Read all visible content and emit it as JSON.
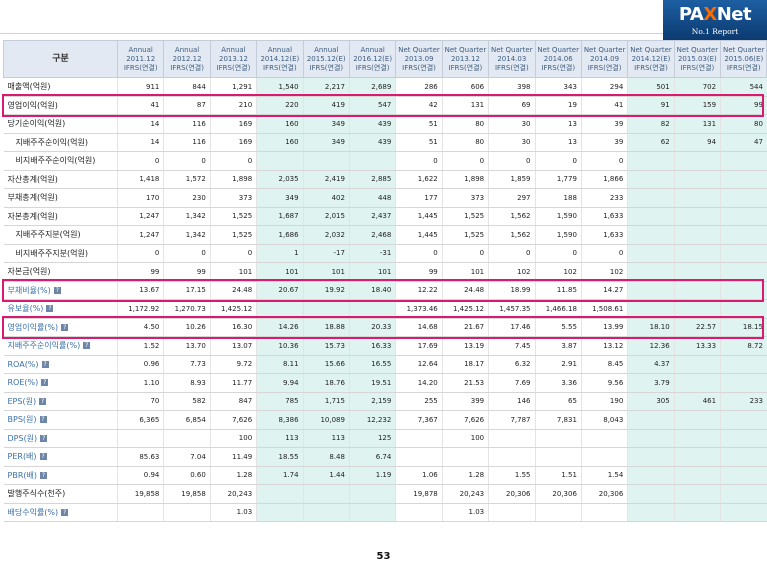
{
  "logo": {
    "pre": "PA",
    "x": "X",
    "post": "Net",
    "sub": "No.1 Report"
  },
  "header": {
    "label": "구분"
  },
  "columns": [
    {
      "l1": "Annual",
      "l2": "2011.12",
      "l3": "IFRS(연결)",
      "est": false
    },
    {
      "l1": "Annual",
      "l2": "2012.12",
      "l3": "IFRS(연결)",
      "est": false
    },
    {
      "l1": "Annual",
      "l2": "2013.12",
      "l3": "IFRS(연결)",
      "est": false
    },
    {
      "l1": "Annual",
      "l2": "2014.12(E)",
      "l3": "IFRS(연결)",
      "est": true
    },
    {
      "l1": "Annual",
      "l2": "2015.12(E)",
      "l3": "IFRS(연결)",
      "est": true
    },
    {
      "l1": "Annual",
      "l2": "2016.12(E)",
      "l3": "IFRS(연결)",
      "est": true
    },
    {
      "l1": "Net Quarter",
      "l2": "2013.09",
      "l3": "IFRS(연결)",
      "est": false
    },
    {
      "l1": "Net Quarter",
      "l2": "2013.12",
      "l3": "IFRS(연결)",
      "est": false
    },
    {
      "l1": "Net Quarter",
      "l2": "2014.03",
      "l3": "IFRS(연결)",
      "est": false
    },
    {
      "l1": "Net Quarter",
      "l2": "2014.06",
      "l3": "IFRS(연결)",
      "est": false
    },
    {
      "l1": "Net Quarter",
      "l2": "2014.09",
      "l3": "IFRS(연결)",
      "est": false
    },
    {
      "l1": "Net Quarter",
      "l2": "2014.12(E)",
      "l3": "IFRS(연결)",
      "est": true
    },
    {
      "l1": "Net Quarter",
      "l2": "2015.03(E)",
      "l3": "IFRS(연결)",
      "est": true
    },
    {
      "l1": "Net Quarter",
      "l2": "2015.06(E)",
      "l3": "IFRS(연결)",
      "est": true
    }
  ],
  "rows": [
    {
      "label": "매출액(억원)",
      "indent": 0,
      "values": [
        "911",
        "844",
        "1,291",
        "1,540",
        "2,217",
        "2,689",
        "286",
        "606",
        "398",
        "343",
        "294",
        "501",
        "702",
        "544"
      ]
    },
    {
      "label": "영업이익(억원)",
      "indent": 0,
      "highlight": true,
      "values": [
        "41",
        "87",
        "210",
        "220",
        "419",
        "547",
        "42",
        "131",
        "69",
        "19",
        "41",
        "91",
        "159",
        "99"
      ]
    },
    {
      "label": "당기순이익(억원)",
      "indent": 0,
      "values": [
        "14",
        "116",
        "169",
        "160",
        "349",
        "439",
        "51",
        "80",
        "30",
        "13",
        "39",
        "82",
        "131",
        "80"
      ]
    },
    {
      "label": "지배주주순이익(억원)",
      "indent": 1,
      "values": [
        "14",
        "116",
        "169",
        "160",
        "349",
        "439",
        "51",
        "80",
        "30",
        "13",
        "39",
        "62",
        "94",
        "47"
      ]
    },
    {
      "label": "비지배주주순이익(억원)",
      "indent": 1,
      "values": [
        "0",
        "0",
        "0",
        "",
        "",
        "",
        "0",
        "0",
        "0",
        "0",
        "0",
        "",
        "",
        ""
      ]
    },
    {
      "label": "자산총계(억원)",
      "indent": 0,
      "section": true,
      "values": [
        "1,418",
        "1,572",
        "1,898",
        "2,035",
        "2,419",
        "2,885",
        "1,622",
        "1,898",
        "1,859",
        "1,779",
        "1,866",
        "",
        "",
        ""
      ]
    },
    {
      "label": "부채총계(억원)",
      "indent": 0,
      "values": [
        "170",
        "230",
        "373",
        "349",
        "402",
        "448",
        "177",
        "373",
        "297",
        "188",
        "233",
        "",
        "",
        ""
      ]
    },
    {
      "label": "자본총계(억원)",
      "indent": 0,
      "values": [
        "1,247",
        "1,342",
        "1,525",
        "1,687",
        "2,015",
        "2,437",
        "1,445",
        "1,525",
        "1,562",
        "1,590",
        "1,633",
        "",
        "",
        ""
      ]
    },
    {
      "label": "지배주주지분(억원)",
      "indent": 1,
      "values": [
        "1,247",
        "1,342",
        "1,525",
        "1,686",
        "2,032",
        "2,468",
        "1,445",
        "1,525",
        "1,562",
        "1,590",
        "1,633",
        "",
        "",
        ""
      ]
    },
    {
      "label": "비지배주주지분(억원)",
      "indent": 1,
      "values": [
        "0",
        "0",
        "0",
        "1",
        "-17",
        "-31",
        "0",
        "0",
        "0",
        "0",
        "0",
        "",
        "",
        ""
      ]
    },
    {
      "label": "자본금(억원)",
      "indent": 0,
      "values": [
        "99",
        "99",
        "101",
        "101",
        "101",
        "101",
        "99",
        "101",
        "102",
        "102",
        "102",
        "",
        "",
        ""
      ]
    },
    {
      "label": "부채비율(%)",
      "indent": 0,
      "link": true,
      "icon": true,
      "section": true,
      "highlight": true,
      "values": [
        "13.67",
        "17.15",
        "24.48",
        "20.67",
        "19.92",
        "18.40",
        "12.22",
        "24.48",
        "18.99",
        "11.85",
        "14.27",
        "",
        "",
        ""
      ]
    },
    {
      "label": "유보율(%)",
      "indent": 0,
      "link": true,
      "icon": true,
      "values": [
        "1,172.92",
        "1,270.73",
        "1,425.12",
        "",
        "",
        "",
        "1,373.46",
        "1,425.12",
        "1,457.35",
        "1,466.18",
        "1,508.61",
        "",
        "",
        ""
      ]
    },
    {
      "label": "영업이익률(%)",
      "indent": 0,
      "link": true,
      "icon": true,
      "section": true,
      "highlight": true,
      "values": [
        "4.50",
        "10.26",
        "16.30",
        "14.26",
        "18.88",
        "20.33",
        "14.68",
        "21.67",
        "17.46",
        "5.55",
        "13.99",
        "18.10",
        "22.57",
        "18.15"
      ]
    },
    {
      "label": "지배주주순이익률(%)",
      "indent": 0,
      "link": true,
      "icon": true,
      "values": [
        "1.52",
        "13.70",
        "13.07",
        "10.36",
        "15.73",
        "16.33",
        "17.69",
        "13.19",
        "7.45",
        "3.87",
        "13.12",
        "12.36",
        "13.33",
        "8.72"
      ]
    },
    {
      "label": "ROA(%)",
      "indent": 0,
      "link": true,
      "icon": true,
      "values": [
        "0.96",
        "7.73",
        "9.72",
        "8.11",
        "15.66",
        "16.55",
        "12.64",
        "18.17",
        "6.32",
        "2.91",
        "8.45",
        "4.37",
        "",
        ""
      ]
    },
    {
      "label": "ROE(%)",
      "indent": 0,
      "link": true,
      "icon": true,
      "values": [
        "1.10",
        "8.93",
        "11.77",
        "9.94",
        "18.76",
        "19.51",
        "14.20",
        "21.53",
        "7.69",
        "3.36",
        "9.56",
        "3.79",
        "",
        ""
      ]
    },
    {
      "label": "EPS(원)",
      "indent": 0,
      "link": true,
      "icon": true,
      "section": true,
      "values": [
        "70",
        "582",
        "847",
        "785",
        "1,715",
        "2,159",
        "255",
        "399",
        "146",
        "65",
        "190",
        "305",
        "461",
        "233"
      ]
    },
    {
      "label": "BPS(원)",
      "indent": 0,
      "link": true,
      "icon": true,
      "values": [
        "6,365",
        "6,854",
        "7,626",
        "8,386",
        "10,089",
        "12,232",
        "7,367",
        "7,626",
        "7,787",
        "7,831",
        "8,043",
        "",
        "",
        ""
      ]
    },
    {
      "label": "DPS(원)",
      "indent": 0,
      "link": true,
      "icon": true,
      "values": [
        "",
        "",
        "100",
        "113",
        "113",
        "125",
        "",
        "100",
        "",
        "",
        "",
        "",
        "",
        ""
      ]
    },
    {
      "label": "PER(배)",
      "indent": 0,
      "link": true,
      "icon": true,
      "values": [
        "85.63",
        "7.04",
        "11.49",
        "18.55",
        "8.48",
        "6.74",
        "",
        "",
        "",
        "",
        "",
        "",
        "",
        ""
      ]
    },
    {
      "label": "PBR(배)",
      "indent": 0,
      "link": true,
      "icon": true,
      "values": [
        "0.94",
        "0.60",
        "1.28",
        "1.74",
        "1.44",
        "1.19",
        "1.06",
        "1.28",
        "1.55",
        "1.51",
        "1.54",
        "",
        "",
        ""
      ]
    },
    {
      "label": "발행주식수(천주)",
      "indent": 0,
      "values": [
        "19,858",
        "19,858",
        "20,243",
        "",
        "",
        "",
        "19,878",
        "20,243",
        "20,306",
        "20,306",
        "20,306",
        "",
        "",
        ""
      ]
    },
    {
      "label": "배당수익률(%)",
      "indent": 0,
      "link": true,
      "icon": true,
      "values": [
        "",
        "",
        "1.03",
        "",
        "",
        "",
        "",
        "1.03",
        "",
        "",
        "",
        "",
        "",
        ""
      ]
    }
  ],
  "icon_glyph": "?",
  "page_number": "53",
  "colors": {
    "estimate_bg": "#dff4f0",
    "highlight_border": "#d81b70",
    "link_text": "#3a6fa8",
    "header_bg": "#e3e9f2",
    "negative": "#e0202a"
  }
}
